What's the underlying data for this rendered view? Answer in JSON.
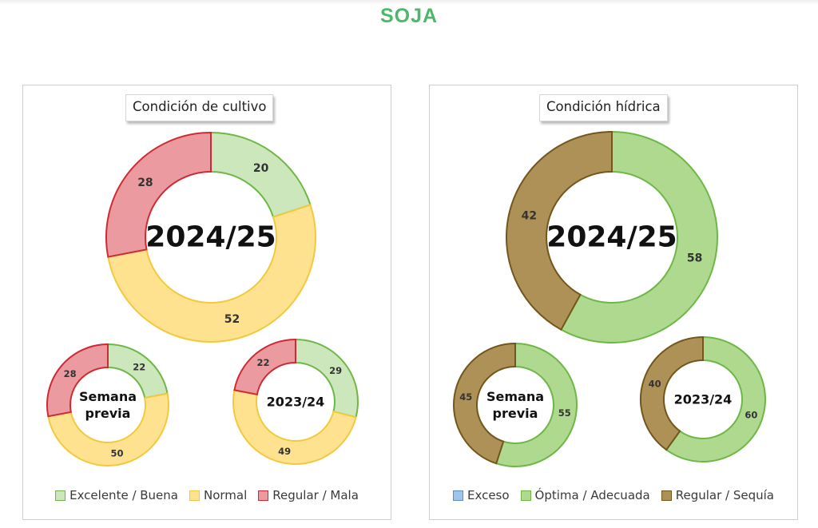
{
  "page": {
    "title": "SOJA"
  },
  "chart_data": [
    {
      "type": "donut",
      "title": "Condición de cultivo",
      "legend_position": "bottom",
      "categories": [
        "Excelente / Buena",
        "Normal",
        "Regular / Mala"
      ],
      "colors": {
        "fills": [
          "#cde7bd",
          "#ffe28f",
          "#eb9b9f"
        ],
        "strokes": [
          "#6db845",
          "#f3c93c",
          "#cf2a33"
        ]
      },
      "series": [
        {
          "name": "2024/25",
          "values": [
            20,
            52,
            28
          ]
        },
        {
          "name": "Semana previa",
          "values": [
            22,
            50,
            28
          ]
        },
        {
          "name": "2023/24",
          "values": [
            29,
            49,
            22
          ]
        }
      ]
    },
    {
      "type": "donut",
      "title": "Condición hídrica",
      "legend_position": "bottom",
      "categories": [
        "Exceso",
        "Óptima / Adecuada",
        "Regular / Sequía"
      ],
      "colors": {
        "fills": [
          "#9fc6ea",
          "#aed98f",
          "#ae9157"
        ],
        "strokes": [
          "#5b8ec7",
          "#6db845",
          "#72561c"
        ]
      },
      "series": [
        {
          "name": "2024/25",
          "values": [
            0,
            58,
            42
          ]
        },
        {
          "name": "Semana previa",
          "values": [
            0,
            55,
            45
          ]
        },
        {
          "name": "2023/24",
          "values": [
            0,
            60,
            40
          ]
        }
      ]
    }
  ]
}
